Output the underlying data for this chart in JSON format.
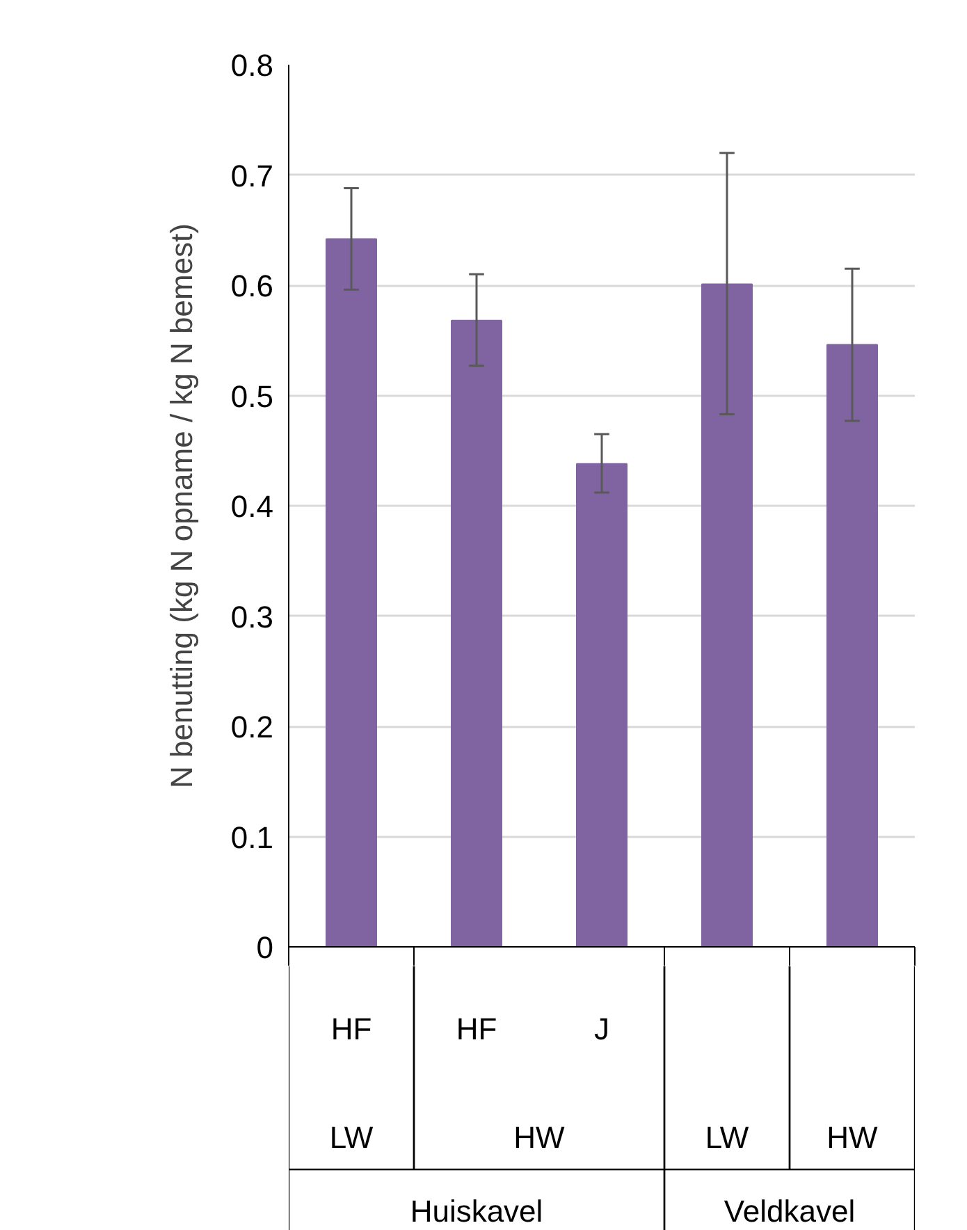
{
  "chart_data": {
    "type": "bar",
    "ylabel": "N benutting (kg N opname / kg N bemest)",
    "categories": [
      "HF",
      "HF",
      "J",
      null,
      null
    ],
    "values": [
      0.642,
      0.568,
      0.438,
      0.601,
      0.546
    ],
    "errors": [
      [
        0.596,
        0.688
      ],
      [
        0.527,
        0.61
      ],
      [
        0.412,
        0.465
      ],
      [
        0.483,
        0.72
      ],
      [
        0.477,
        0.615
      ]
    ],
    "color": "#8064a2",
    "ylim": [
      0,
      0.8
    ],
    "yticks": [
      0,
      0.1,
      0.2,
      0.3,
      0.4,
      0.5,
      0.6,
      0.7,
      0.8
    ],
    "grid": "y",
    "annotations": [
      "LW",
      "HW",
      "LW",
      "HW",
      "Huiskavel",
      "Veldkavel"
    ]
  }
}
